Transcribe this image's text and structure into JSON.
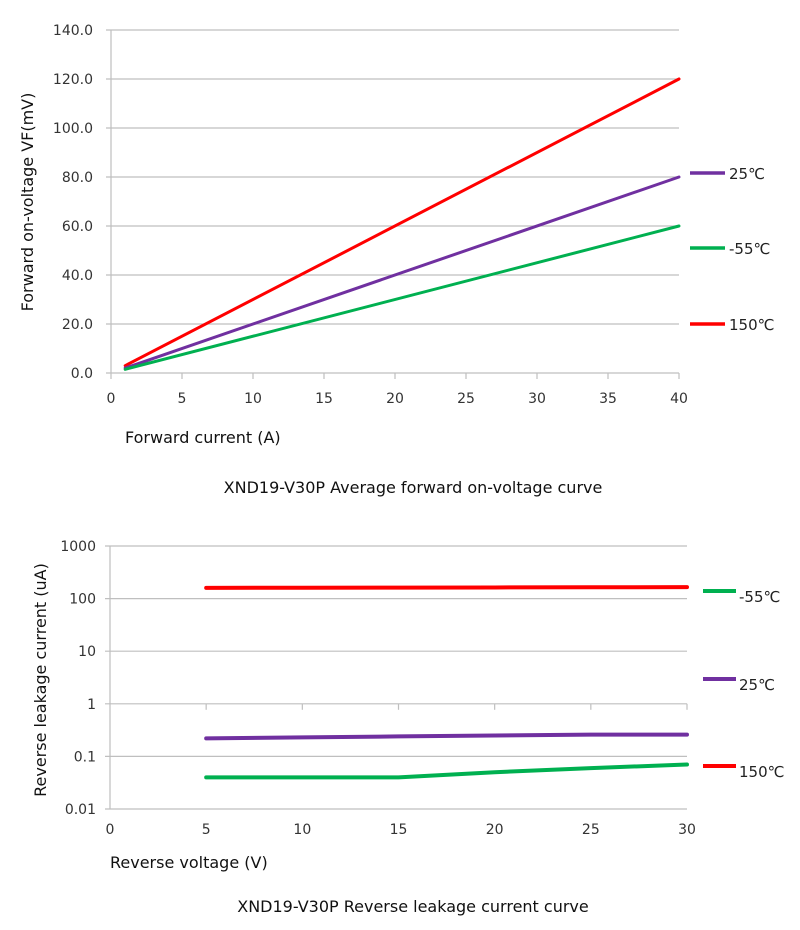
{
  "chart_data": [
    {
      "type": "line",
      "title": "XND19-V30P Average forward on-voltage curve",
      "xlabel": "Forward current (A)",
      "ylabel": "Forward on-voltage VF(mV)",
      "xlim": [
        0,
        40
      ],
      "ylim": [
        0,
        140
      ],
      "x_ticks": [
        "0",
        "5",
        "10",
        "15",
        "20",
        "25",
        "30",
        "35",
        "40"
      ],
      "y_ticks": [
        "0.0",
        "20.0",
        "40.0",
        "60.0",
        "80.0",
        "100.0",
        "120.0",
        "140.0"
      ],
      "grid": "horizontal",
      "legend_position": "right",
      "series": [
        {
          "name": "150℃",
          "color": "#ff0000",
          "x": [
            1,
            40
          ],
          "y": [
            3,
            120
          ]
        },
        {
          "name": "25℃",
          "color": "#7030a0",
          "x": [
            1,
            40
          ],
          "y": [
            2,
            80
          ]
        },
        {
          "name": "-55℃",
          "color": "#00b050",
          "x": [
            1,
            40
          ],
          "y": [
            1.5,
            60
          ]
        }
      ],
      "legend": [
        {
          "label": "25℃",
          "color": "#7030a0"
        },
        {
          "label": "-55℃",
          "color": "#00b050"
        },
        {
          "label": "150℃",
          "color": "#ff0000"
        }
      ]
    },
    {
      "type": "line",
      "title": "XND19-V30P Reverse leakage current curve",
      "xlabel": "Reverse voltage (V)",
      "ylabel": "Reverse leakage current (uA)",
      "xlim": [
        0,
        30
      ],
      "ylim": [
        0.01,
        1000
      ],
      "yscale": "log",
      "x_ticks": [
        "0",
        "5",
        "10",
        "15",
        "20",
        "25",
        "30"
      ],
      "y_ticks": [
        "0.01",
        "0.1",
        "1",
        "10",
        "100",
        "1000"
      ],
      "grid": "horizontal",
      "legend_position": "right",
      "series": [
        {
          "name": "150℃",
          "color": "#ff0000",
          "x": [
            5,
            10,
            15,
            20,
            25,
            30
          ],
          "y": [
            160,
            161,
            162,
            163,
            164,
            165
          ]
        },
        {
          "name": "25℃",
          "color": "#7030a0",
          "x": [
            5,
            10,
            15,
            20,
            25,
            30
          ],
          "y": [
            0.22,
            0.23,
            0.24,
            0.25,
            0.26,
            0.26
          ]
        },
        {
          "name": "-55℃",
          "color": "#00b050",
          "x": [
            5,
            10,
            15,
            20,
            25,
            30
          ],
          "y": [
            0.04,
            0.04,
            0.04,
            0.05,
            0.06,
            0.07
          ]
        }
      ],
      "legend": [
        {
          "label": "-55℃",
          "color": "#00b050"
        },
        {
          "label": "25℃",
          "color": "#7030a0"
        },
        {
          "label": "150℃",
          "color": "#ff0000"
        }
      ]
    }
  ]
}
